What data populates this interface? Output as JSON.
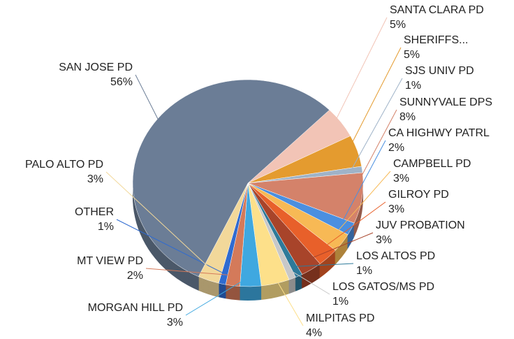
{
  "chart_data": {
    "type": "pie",
    "categories": [
      "SANTA CLARA PD",
      "SHERIFFS...",
      "SJS UNIV PD",
      "SUNNYVALE DPS",
      "CA HIGHWY PATRL",
      "CAMPBELL PD",
      "GILROY PD",
      "JUV PROBATION",
      "LOS ALTOS PD",
      "LOS GATOS/MS PD",
      "MILPITAS PD",
      "MORGAN HILL PD",
      "MT VIEW PD",
      "OTHER",
      "PALO ALTO PD",
      "SAN JOSE PD"
    ],
    "values": [
      5,
      5,
      1,
      8,
      2,
      3,
      3,
      3,
      1,
      1,
      4,
      3,
      2,
      1,
      3,
      56
    ],
    "value_labels": [
      "5%",
      "5%",
      "1%",
      "8%",
      "2%",
      "3%",
      "3%",
      "3%",
      "1%",
      "1%",
      "4%",
      "3%",
      "2%",
      "1%",
      "3%",
      "56%"
    ],
    "colors": [
      "#f2c4b6",
      "#e49b2f",
      "#9fb3c8",
      "#d4826a",
      "#4a8fe0",
      "#f7b955",
      "#e8602a",
      "#a8442a",
      "#2e7a9a",
      "#c8c8c8",
      "#fde08a",
      "#3fa8e0",
      "#d47a5a",
      "#2f6bd0",
      "#f2d89a",
      "#6b7d96"
    ]
  }
}
